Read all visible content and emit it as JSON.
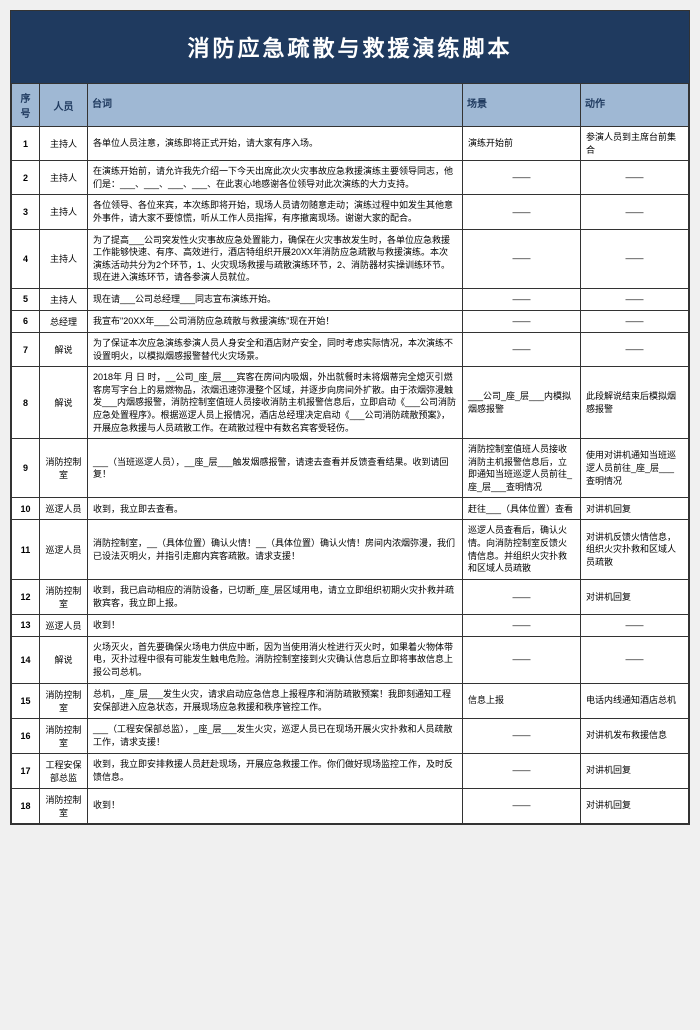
{
  "title": "消防应急疏散与救援演练脚本",
  "headers": {
    "num": "序号",
    "person": "人员",
    "dialogue": "台词",
    "scene": "场景",
    "action": "动作"
  },
  "rows": [
    {
      "num": "1",
      "person": "主持人",
      "dialogue": "各单位人员注意，演练即将正式开始，请大家有序入场。",
      "scene": "演练开始前",
      "action": "参演人员到主席台前集合"
    },
    {
      "num": "2",
      "person": "主持人",
      "dialogue": "在演练开始前，请允许我先介绍一下今天出席此次火灾事故应急救援演练主要领导同志，他们是：___、___、___、___、在此衷心地感谢各位领导对此次演练的大力支持。",
      "scene": "——",
      "action": "——"
    },
    {
      "num": "3",
      "person": "主持人",
      "dialogue": "各位领导、各位来宾，本次练即将开始，现场人员请勿随意走动；演练过程中如发生其他意外事件，请大家不要惊慌，听从工作人员指挥，有序撤离现场。谢谢大家的配合。",
      "scene": "——",
      "action": "——"
    },
    {
      "num": "4",
      "person": "主持人",
      "dialogue": "为了提高___公司突发性火灾事故应急处置能力，确保在火灾事故发生时，各单位应急救援工作能够快速、有序、高效进行，酒店特组织开展20XX年消防应急疏散与救援演练。本次演练活动共分为2个环节，1、火灾现场救援与疏散演练环节，2、消防器材实操训练环节。现在进入演练环节，请各参演人员就位。",
      "scene": "——",
      "action": "——"
    },
    {
      "num": "5",
      "person": "主持人",
      "dialogue": "现在请___公司总经理___同志宣布演练开始。",
      "scene": "——",
      "action": "——"
    },
    {
      "num": "6",
      "person": "总经理",
      "dialogue": "我宣布\"20XX年___公司消防应急疏散与救援演练\"现在开始！",
      "scene": "——",
      "action": "——"
    },
    {
      "num": "7",
      "person": "解说",
      "dialogue": "为了保证本次应急演练参演人员人身安全和酒店财产安全，同时考虑实际情况，本次演练不设置明火，以模拟烟感报警替代火灾场景。",
      "scene": "——",
      "action": "——"
    },
    {
      "num": "8",
      "person": "解说",
      "dialogue": "2018年 月 日 时，__公司_座_层___宾客在房间内吸烟，外出就餐时未将烟蒂完全熄灭引燃客房写字台上的易燃物品，浓烟迅速弥漫整个区域，并逐步向房间外扩散。由于浓烟弥漫触发___内烟感报警，消防控制室值班人员接收消防主机报警信息后，立即启动《___公司消防应急处置程序》。根据巡逻人员上报情况，酒店总经理决定启动《___公司消防疏散预案》，开展应急救援与人员疏散工作。在疏散过程中有数名宾客受轻伤。",
      "scene": "___公司_座_层___内模拟烟感报警",
      "action": "此段解说结束后模拟烟感报警"
    },
    {
      "num": "9",
      "person": "消防控制室",
      "dialogue": "___（当班巡逻人员），__座_层___触发烟感报警，请速去查看并反馈查看结果。收到请回复！",
      "scene": "消防控制室值班人员接收消防主机报警信息后，立即通知当班巡逻人员前往_座_层___查明情况",
      "action": "使用对讲机通知当班巡逻人员前往_座_层___查明情况"
    },
    {
      "num": "10",
      "person": "巡逻人员",
      "dialogue": "收到，我立即去查看。",
      "scene": "赶往___（具体位置）查看",
      "action": "对讲机回复"
    },
    {
      "num": "11",
      "person": "巡逻人员",
      "dialogue": "消防控制室，__（具体位置）确认火情！__（具体位置）确认火情！房间内浓烟弥漫，我们已设法灭明火，并指引走廊内宾客疏散。请求支援！",
      "scene": "巡逻人员查看后，确认火情。向消防控制室反馈火情信息。并组织火灾扑救和区域人员疏散",
      "action": "对讲机反馈火情信息，组织火灾扑救和区域人员疏散"
    },
    {
      "num": "12",
      "person": "消防控制室",
      "dialogue": "收到，我已启动相应的消防设备，已切断_座_层区域用电，请立立即组织初期火灾扑救并疏散宾客，我立即上报。",
      "scene": "——",
      "action": "对讲机回复"
    },
    {
      "num": "13",
      "person": "巡逻人员",
      "dialogue": "收到！",
      "scene": "——",
      "action": "——"
    },
    {
      "num": "14",
      "person": "解说",
      "dialogue": "火场灭火，首先要确保火场电力供应中断，因为当使用消火栓进行灭火时，如果着火物体带电，灭扑过程中很有可能发生触电危险。消防控制室接到火灾确认信息后立即将事故信息上报公司总机。",
      "scene": "——",
      "action": "——"
    },
    {
      "num": "15",
      "person": "消防控制室",
      "dialogue": "总机，_座_层___发生火灾，请求启动应急信息上报程序和消防疏散预案！我即刻通知工程安保部进入应急状态，开展现场应急救援和秩序管控工作。",
      "scene": "信息上报",
      "action": "电话内线通知酒店总机"
    },
    {
      "num": "16",
      "person": "消防控制室",
      "dialogue": "___（工程安保部总监），_座_层___发生火灾，巡逻人员已在现场开展火灾扑救和人员疏散工作，请求支援！",
      "scene": "——",
      "action": "对讲机发布救援信息"
    },
    {
      "num": "17",
      "person": "工程安保部总监",
      "dialogue": "收到，我立即安排救援人员赶赴现场，开展应急救援工作。你们做好现场监控工作，及时反馈信息。",
      "scene": "——",
      "action": "对讲机回复"
    },
    {
      "num": "18",
      "person": "消防控制室",
      "dialogue": "收到！",
      "scene": "——",
      "action": "对讲机回复"
    }
  ],
  "colors": {
    "banner_bg": "#1f3a5f",
    "banner_text": "#ffffff",
    "header_bg": "#9fb8d4",
    "header_text": "#1f3a5f",
    "border": "#333333",
    "page_bg": "#ffffff"
  }
}
